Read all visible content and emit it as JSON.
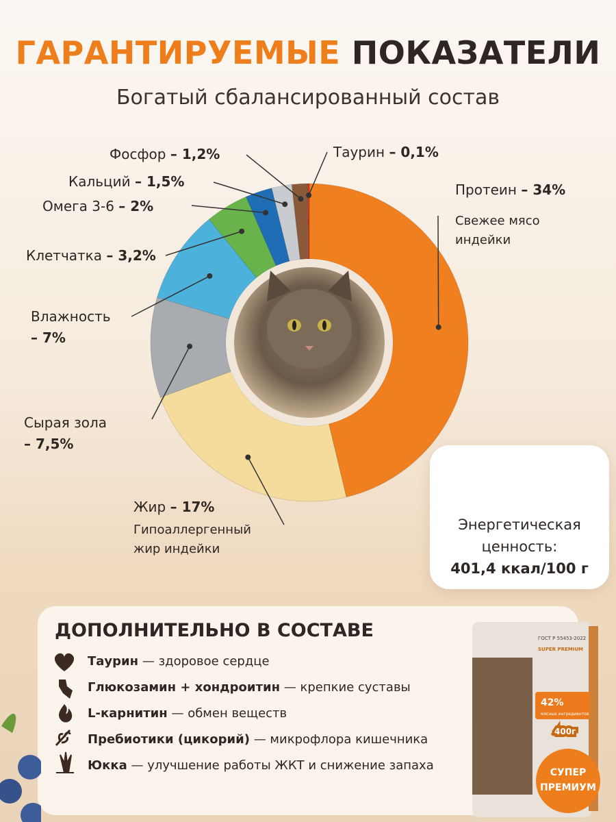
{
  "header": {
    "title_accent": "ГАРАНТИРУЕМЫЕ",
    "title_rest": "ПОКАЗАТЕЛИ",
    "subtitle": "Богатый сбалансированный состав"
  },
  "chart_data": {
    "type": "pie",
    "categories": [
      "Протеин",
      "Жир",
      "Сырая зола",
      "Влажность",
      "Клетчатка",
      "Омега 3-6",
      "Кальций",
      "Фосфор",
      "Таурин"
    ],
    "values": [
      34,
      17,
      7.5,
      7,
      3.2,
      2,
      1.5,
      1.2,
      0.1
    ],
    "value_labels": [
      "34%",
      "17%",
      "7,5%",
      "7%",
      "3,2%",
      "2%",
      "1,5%",
      "1,2%",
      "0,1%"
    ],
    "colors": [
      "#f07f1f",
      "#f5dc9c",
      "#a8abb0",
      "#4cb2dc",
      "#68b34a",
      "#1f6db5",
      "#c8ccd1",
      "#8a5a3a",
      "#e0321e"
    ],
    "descriptions": [
      "Свежее мясо индейки",
      "Гипоаллергенный жир индейки",
      null,
      null,
      null,
      null,
      null,
      null,
      null
    ],
    "label_separator": "–"
  },
  "energy": {
    "label": "Энергетическая ценность:",
    "value": "401,4 ккал/100 г"
  },
  "extras": {
    "title": "ДОПОЛНИТЕЛЬНО В СОСТАВЕ",
    "separator": "—",
    "items": [
      {
        "name": "Таурин",
        "text": "здоровое сердце"
      },
      {
        "name": "Глюкозамин + хондроитин",
        "text": "крепкие суставы"
      },
      {
        "name": "L-карнитин",
        "text": "обмен веществ"
      },
      {
        "name": "Пребиотики (цикорий)",
        "text": "микрофлора кишечника"
      },
      {
        "name": "Юкка",
        "text": "улучшение работы ЖКТ и снижение запаха"
      }
    ]
  },
  "package": {
    "gost": "ГОСТ Р 55453-2022",
    "class": "SUPER PREMIUM",
    "share": "42%",
    "share_text": "мясных ингредиентов",
    "weight": "400г"
  },
  "badge": {
    "line1": "СУПЕР",
    "line2": "ПРЕМИУМ"
  }
}
